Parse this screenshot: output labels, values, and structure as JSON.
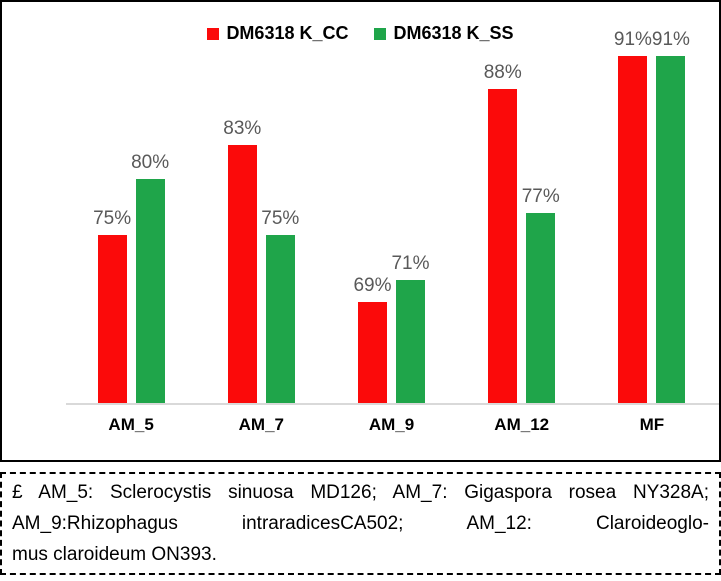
{
  "chart_data": {
    "type": "bar",
    "categories": [
      "AM_5",
      "AM_7",
      "AM_9",
      "AM_12",
      "MF"
    ],
    "series": [
      {
        "name": "DM6318 K_CC",
        "color": "#fb0a0a",
        "values": [
          75,
          83,
          69,
          88,
          91
        ]
      },
      {
        "name": "DM6318 K_SS",
        "color": "#1fa54a",
        "values": [
          80,
          75,
          71,
          77,
          91
        ]
      }
    ],
    "value_suffix": "%",
    "title": "",
    "xlabel": "",
    "ylabel": "",
    "ylim": [
      60,
      95
    ],
    "grid": false,
    "legend_position": "top-center",
    "data_label_color": "#595959",
    "axis_line_color": "#d9d9d9"
  },
  "footnote": {
    "lines": [
      "£ AM_5: Sclerocystis sinuosa MD126; AM_7: Gigaspora rosea NY328A;",
      "AM_9:Rhizophagus intraradicesCA502; AM_12: Claroideoglo-",
      "mus claroideum ON393."
    ]
  }
}
